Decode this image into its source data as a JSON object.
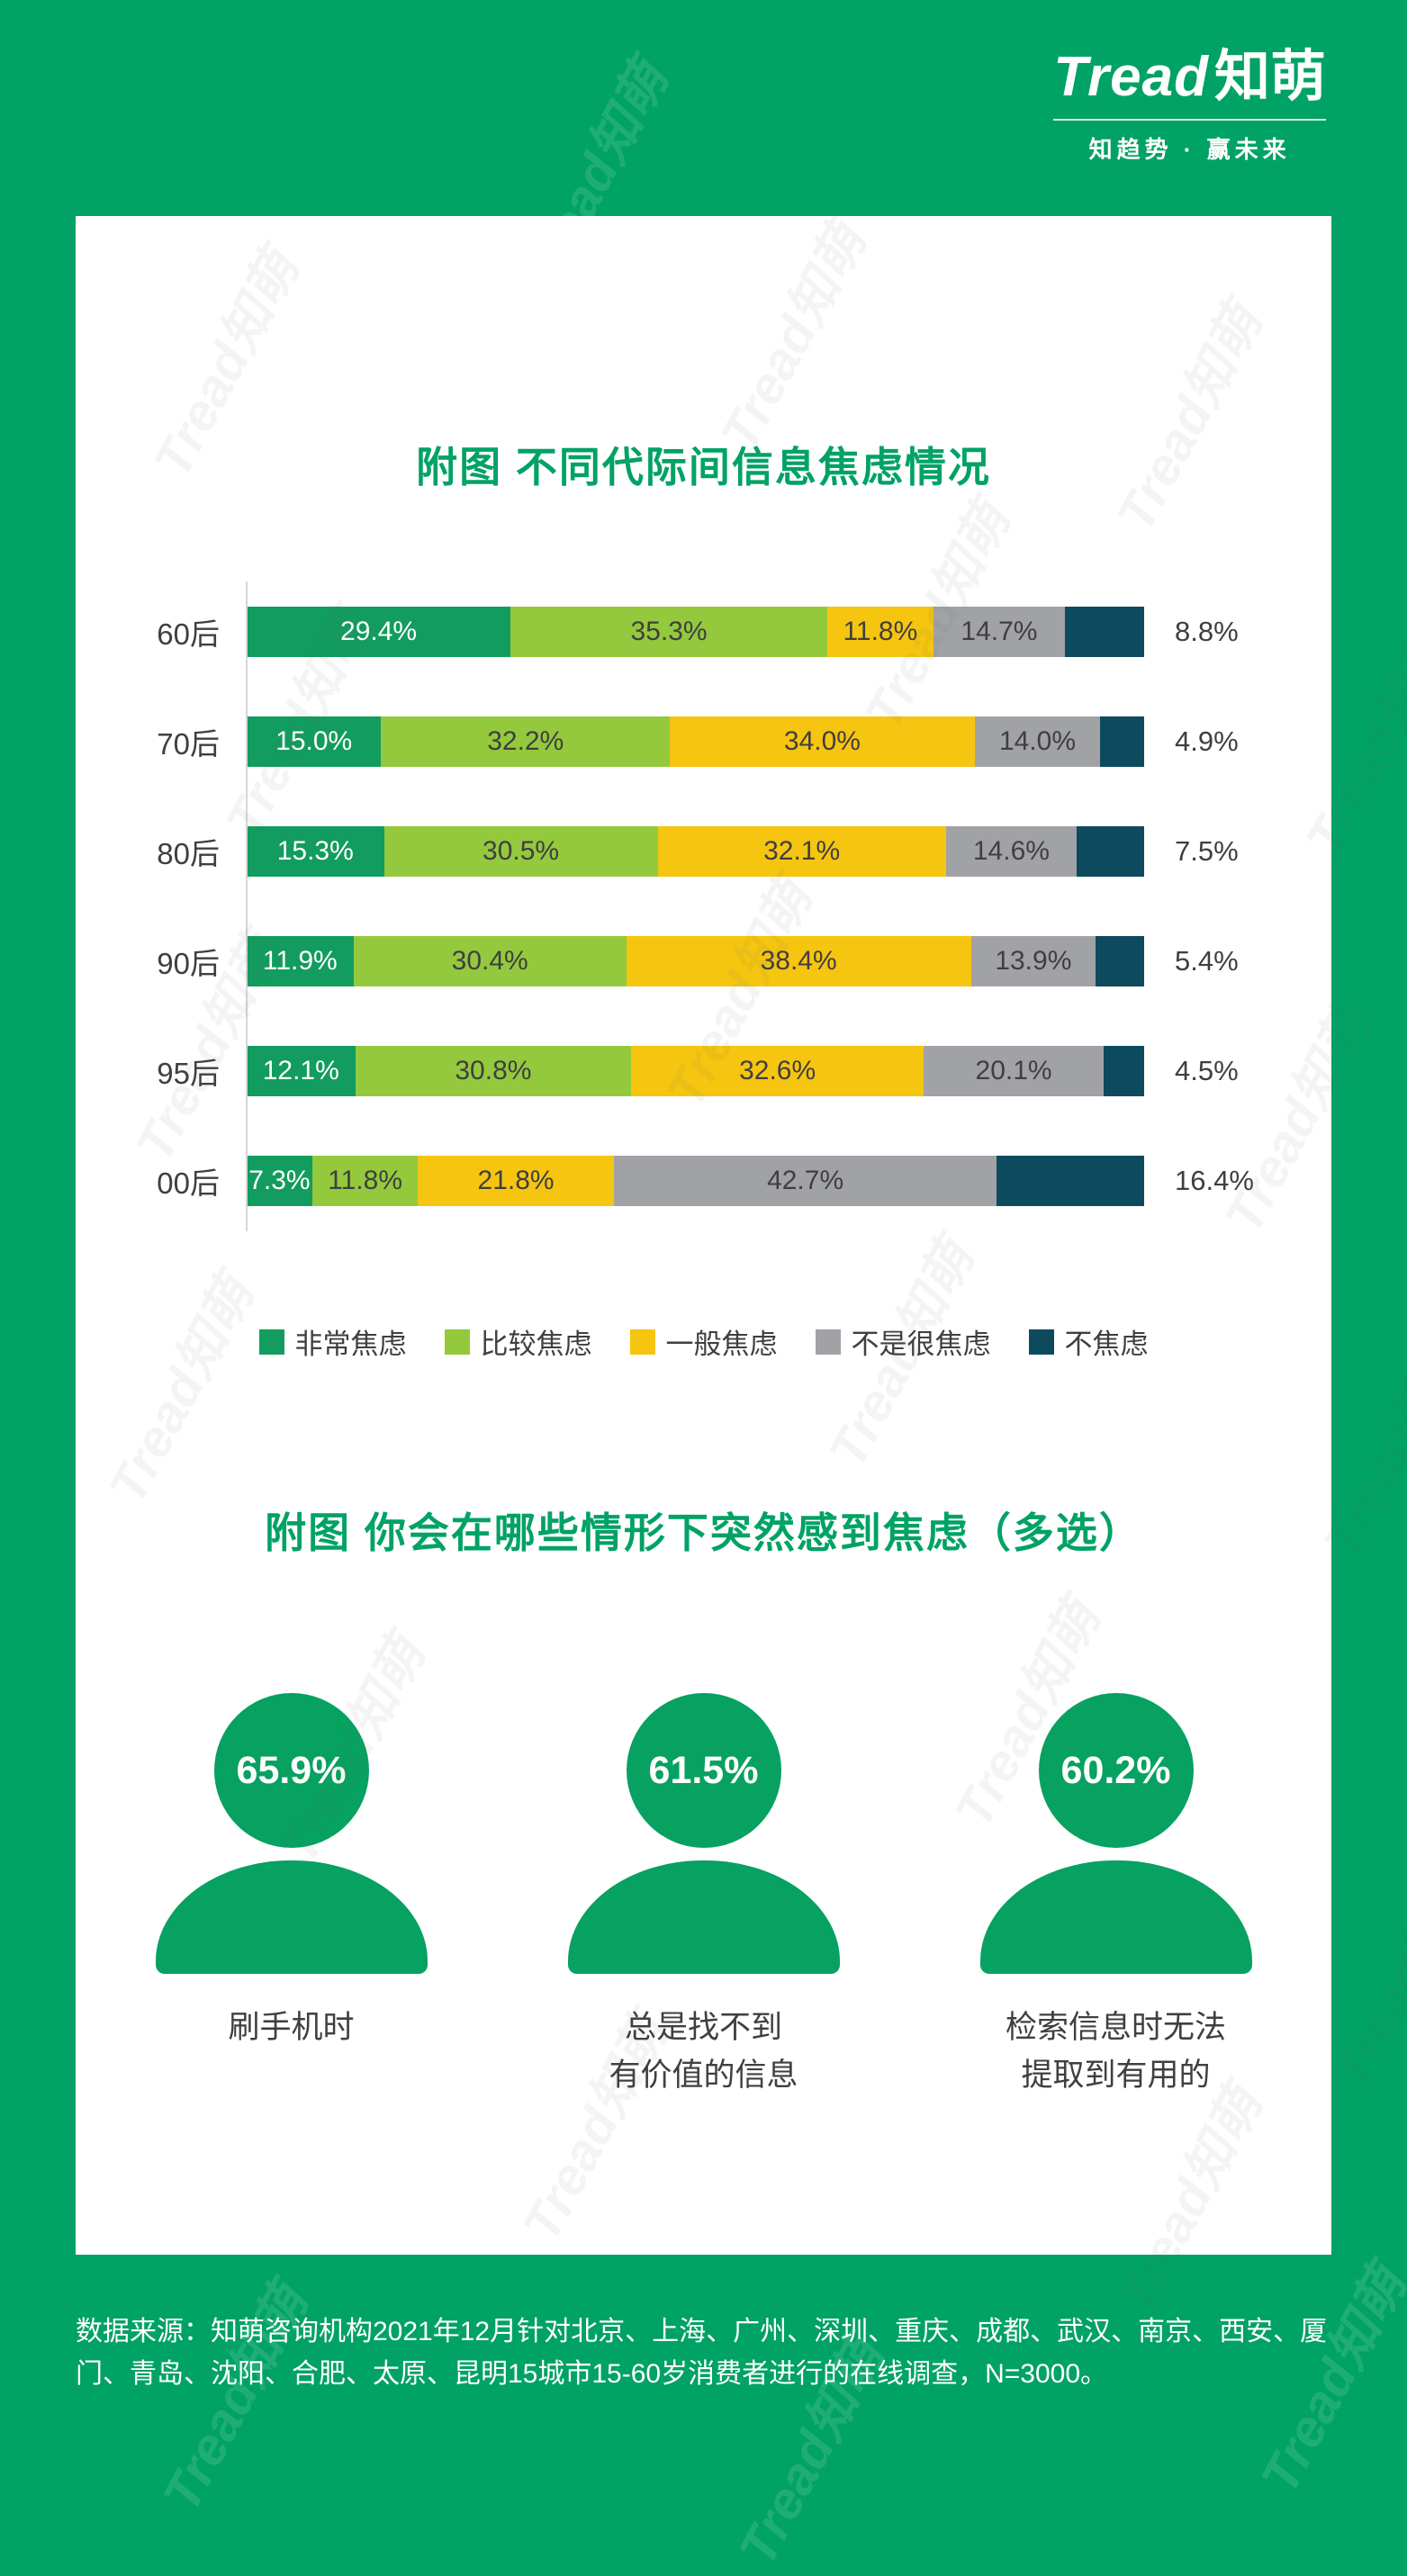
{
  "page": {
    "bg_color": "#00a265",
    "card_color": "#ffffff",
    "watermark": "Tread知萌"
  },
  "header": {
    "logo_tread": "Tread",
    "logo_zhimeng": "知萌",
    "tagline": "知趋势 · 赢未来"
  },
  "chart_data": [
    {
      "type": "bar",
      "orientation": "horizontal-stacked",
      "title": "附图 不同代际间信息焦虑情况",
      "categories": [
        "60后",
        "70后",
        "80后",
        "90后",
        "95后",
        "00后"
      ],
      "series": [
        {
          "name": "非常焦虑",
          "color": "#129c5f",
          "values": [
            29.4,
            15.0,
            15.3,
            11.9,
            12.1,
            7.3
          ]
        },
        {
          "name": "比较焦虑",
          "color": "#94c93d",
          "values": [
            35.3,
            32.2,
            30.5,
            30.4,
            30.8,
            11.8
          ]
        },
        {
          "name": "一般焦虑",
          "color": "#f6c510",
          "values": [
            11.8,
            34.0,
            32.1,
            38.4,
            32.6,
            21.8
          ]
        },
        {
          "name": "不是很焦虑",
          "color": "#a1a2a6",
          "values": [
            14.7,
            14.0,
            14.6,
            13.9,
            20.1,
            42.7
          ]
        },
        {
          "name": "不焦虑",
          "color": "#0e4a5e",
          "values": [
            8.8,
            4.9,
            7.5,
            5.4,
            4.5,
            16.4
          ]
        }
      ],
      "value_suffix": "%",
      "xlim": [
        0,
        100
      ],
      "grid": false,
      "legend_position": "bottom"
    },
    {
      "type": "pictogram",
      "title": "附图 你会在哪些情形下突然感到焦虑（多选）",
      "items": [
        {
          "value": "65.9%",
          "label": "刷手机时"
        },
        {
          "value": "61.5%",
          "label": "总是找不到\n有价值的信息"
        },
        {
          "value": "60.2%",
          "label": "检索信息时无法\n提取到有用的"
        }
      ]
    }
  ],
  "footer": {
    "source_text": "数据来源：知萌咨询机构2021年12月针对北京、上海、广州、深圳、重庆、成都、武汉、南京、西安、厦门、青岛、沈阳、合肥、太原、昆明15城市15-60岁消费者进行的在线调查，N=3000。"
  }
}
